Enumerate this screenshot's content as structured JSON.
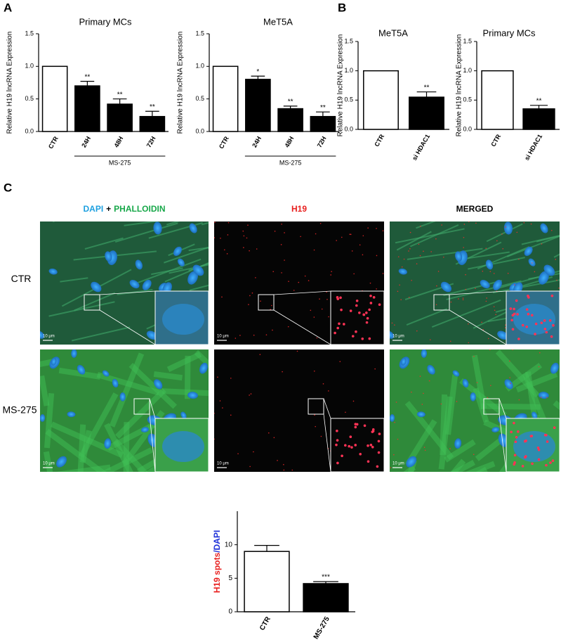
{
  "panel_labels": [
    "A",
    "B",
    "C"
  ],
  "chart_data": [
    {
      "type": "bar",
      "title": "Primary MCs",
      "ylabel": "Relative H19 lncRNA Expression",
      "categories": [
        "CTR",
        "24H",
        "48H",
        "72H"
      ],
      "values": [
        1.0,
        0.7,
        0.42,
        0.23
      ],
      "errors": [
        null,
        0.07,
        0.08,
        0.08
      ],
      "annotations": [
        null,
        "**",
        "**",
        "**"
      ],
      "colors": [
        "#ffffff",
        "#000000",
        "#000000",
        "#000000"
      ],
      "group_label": "MS-275",
      "ylim": [
        0,
        1.5
      ],
      "yticks": [
        {
          "value": 0,
          "label": "0.0"
        },
        0.5,
        {
          "value": 1,
          "label": "1.0"
        },
        1.5
      ]
    },
    {
      "type": "bar",
      "title": "MeT5A",
      "ylabel": "Relative H19 lncRNA Expression",
      "categories": [
        "CTR",
        "24H",
        "48H",
        "72H"
      ],
      "values": [
        1.0,
        0.8,
        0.35,
        0.23
      ],
      "errors": [
        null,
        0.05,
        0.04,
        0.07
      ],
      "annotations": [
        null,
        "*",
        "**",
        "**"
      ],
      "colors": [
        "#ffffff",
        "#000000",
        "#000000",
        "#000000"
      ],
      "group_label": "MS-275",
      "ylim": [
        0,
        1.5
      ],
      "yticks": [
        {
          "value": 0,
          "label": "0.0"
        },
        0.5,
        {
          "value": 1,
          "label": "1.0"
        },
        1.5
      ]
    },
    {
      "type": "bar",
      "title": "MeT5A",
      "ylabel": "Relative H19 lncRNA Expression",
      "categories": [
        "CTR",
        "si HDAC1"
      ],
      "values": [
        1.0,
        0.55
      ],
      "errors": [
        null,
        0.09
      ],
      "annotations": [
        null,
        "**"
      ],
      "colors": [
        "#ffffff",
        "#000000"
      ],
      "ylim": [
        0,
        1.5
      ],
      "yticks": [
        {
          "value": 0,
          "label": "0.0"
        },
        0.5,
        {
          "value": 1,
          "label": "1.0"
        },
        1.5
      ]
    },
    {
      "type": "bar",
      "title": "Primary MCs",
      "ylabel": "Relative H19 lncRNA Expression",
      "categories": [
        "CTR",
        "si HDAC1"
      ],
      "values": [
        1.0,
        0.35
      ],
      "errors": [
        null,
        0.06
      ],
      "annotations": [
        null,
        "**"
      ],
      "colors": [
        "#ffffff",
        "#000000"
      ],
      "ylim": [
        0,
        1.5
      ],
      "yticks": [
        {
          "value": 0,
          "label": "0.0"
        },
        0.5,
        {
          "value": 1,
          "label": "1.0"
        },
        1.5
      ]
    },
    {
      "type": "bar",
      "ylabel_parts": [
        {
          "text": "H19 spots",
          "color": "#e8201f"
        },
        {
          "text": "/DAPI",
          "color": "#1d2fd8"
        }
      ],
      "categories": [
        "CTR",
        "MS-275"
      ],
      "values": [
        9.0,
        4.2
      ],
      "errors": [
        0.9,
        0.3
      ],
      "annotations": [
        null,
        "***"
      ],
      "colors": [
        "#ffffff",
        "#000000"
      ],
      "ylim": [
        0,
        15
      ],
      "yticks": [
        0,
        5,
        10
      ]
    }
  ],
  "image_panel": {
    "columns": [
      {
        "parts": [
          {
            "text": "DAPI",
            "color": "#1ea0e0"
          },
          {
            "text": "+",
            "color": "#000000"
          },
          {
            "text": "PHALLOIDIN",
            "color": "#18a84a"
          }
        ]
      },
      {
        "parts": [
          {
            "text": "H19",
            "color": "#e8201f"
          }
        ]
      },
      {
        "parts": [
          {
            "text": "MERGED",
            "color": "#000000"
          }
        ]
      }
    ],
    "rows": [
      "CTR",
      "MS-275"
    ],
    "scale_bar": "10 μm"
  }
}
